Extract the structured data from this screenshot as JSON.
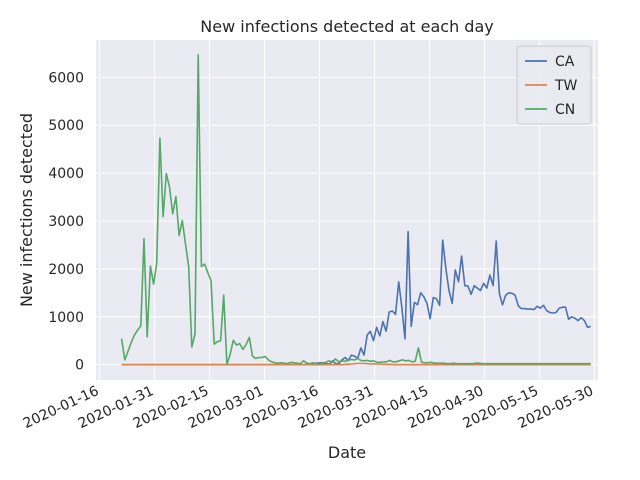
{
  "chart_data": {
    "type": "line",
    "title": "New infections detected at each day",
    "xlabel": "Date",
    "ylabel": "New infections detected",
    "x_start": "2020-01-22",
    "x_end": "2020-05-29",
    "xlim": [
      "2020-01-15",
      "2020-05-31"
    ],
    "ylim": [
      -320,
      6780
    ],
    "x_ticks": [
      "2020-01-16",
      "2020-01-31",
      "2020-02-15",
      "2020-03-01",
      "2020-03-16",
      "2020-03-31",
      "2020-04-15",
      "2020-04-30",
      "2020-05-15",
      "2020-05-30"
    ],
    "y_ticks": [
      0,
      1000,
      2000,
      3000,
      4000,
      5000,
      6000
    ],
    "grid": true,
    "legend_position": "top-right",
    "colors": {
      "background": "#eaeaf2",
      "grid": "#ffffff",
      "CA": "#4c72b0",
      "TW": "#dd8452",
      "CN": "#55a868"
    },
    "series": [
      {
        "name": "CA",
        "values": [
          0,
          0,
          0,
          0,
          0,
          0,
          0,
          0,
          0,
          0,
          0,
          0,
          0,
          0,
          0,
          0,
          0,
          0,
          0,
          0,
          0,
          0,
          0,
          0,
          0,
          0,
          0,
          0,
          0,
          0,
          0,
          0,
          0,
          0,
          0,
          0,
          0,
          0,
          0,
          0,
          0,
          0,
          0,
          0,
          0,
          0,
          0,
          0,
          0,
          0,
          0,
          0,
          0,
          0,
          0,
          0,
          0,
          0,
          0,
          0,
          20,
          20,
          30,
          40,
          40,
          20,
          10,
          80,
          20,
          20,
          100,
          150,
          90,
          200,
          180,
          130,
          350,
          200,
          620,
          700,
          500,
          780,
          600,
          900,
          700,
          1100,
          1120,
          1050,
          1730,
          1200,
          540,
          2780,
          800,
          1300,
          1250,
          1500,
          1420,
          1280,
          960,
          1400,
          1380,
          1240,
          2600,
          2000,
          1550,
          1280,
          1980,
          1730,
          2270,
          1650,
          1640,
          1470,
          1650,
          1600,
          1550,
          1700,
          1600,
          1870,
          1650,
          2580,
          1480,
          1250,
          1450,
          1500,
          1490,
          1450,
          1230,
          1170,
          1170,
          1160,
          1160,
          1150,
          1220,
          1180,
          1240,
          1130,
          1090,
          1080,
          1090,
          1180,
          1200,
          1200,
          950,
          1000,
          970,
          920,
          980,
          920,
          780,
          800
        ]
      },
      {
        "name": "TW",
        "values": [
          0,
          0,
          0,
          0,
          0,
          0,
          0,
          0,
          0,
          0,
          0,
          0,
          0,
          0,
          0,
          0,
          0,
          0,
          0,
          0,
          0,
          0,
          0,
          0,
          0,
          0,
          0,
          0,
          0,
          0,
          0,
          0,
          0,
          0,
          0,
          0,
          0,
          0,
          0,
          0,
          0,
          0,
          0,
          0,
          0,
          0,
          0,
          0,
          0,
          0,
          0,
          0,
          0,
          0,
          0,
          0,
          0,
          0,
          0,
          0,
          0,
          0,
          0,
          0,
          0,
          0,
          0,
          0,
          0,
          0,
          0,
          0,
          0,
          5,
          10,
          15,
          20,
          25,
          27,
          25,
          20,
          15,
          18,
          15,
          12,
          10,
          8,
          5,
          5,
          0,
          0,
          0,
          0,
          0,
          0,
          0,
          0,
          0,
          0,
          0,
          0,
          0,
          0,
          0,
          0,
          0,
          0,
          0,
          0,
          0,
          0,
          0,
          0,
          0,
          0,
          0,
          0,
          0,
          0,
          0,
          0,
          0,
          0,
          0,
          0,
          0,
          0,
          0,
          0,
          0,
          0,
          0,
          0,
          0,
          0,
          0,
          0,
          0,
          0,
          0,
          0,
          0,
          0,
          0,
          0,
          0,
          0,
          0,
          0,
          0,
          0,
          0,
          0,
          0
        ]
      },
      {
        "name": "CN",
        "values": [
          540,
          100,
          280,
          460,
          620,
          720,
          810,
          2630,
          580,
          2060,
          1680,
          2120,
          4730,
          3090,
          3990,
          3710,
          3150,
          3510,
          2700,
          3010,
          2520,
          2040,
          370,
          640,
          6470,
          2050,
          2100,
          1920,
          1760,
          430,
          480,
          500,
          1450,
          10,
          210,
          510,
          410,
          440,
          320,
          420,
          570,
          180,
          130,
          150,
          150,
          170,
          100,
          60,
          40,
          30,
          40,
          30,
          20,
          50,
          40,
          30,
          20,
          80,
          30,
          20,
          40,
          20,
          20,
          30,
          50,
          80,
          50,
          120,
          60,
          80,
          70,
          90,
          110,
          100,
          130,
          90,
          80,
          90,
          70,
          80,
          50,
          50,
          60,
          60,
          90,
          60,
          60,
          80,
          100,
          80,
          90,
          60,
          70,
          350,
          50,
          40,
          40,
          50,
          30,
          30,
          30,
          30,
          20,
          20,
          30,
          20,
          20,
          20,
          20,
          20,
          20,
          30,
          30,
          20,
          20,
          20,
          20,
          20,
          20,
          20,
          20,
          20,
          20,
          20,
          20,
          20,
          20,
          20,
          20,
          20,
          20,
          20,
          20,
          20,
          20,
          20,
          20,
          20,
          20,
          20,
          20,
          20,
          20,
          20,
          20,
          20,
          20,
          20
        ]
      }
    ]
  }
}
